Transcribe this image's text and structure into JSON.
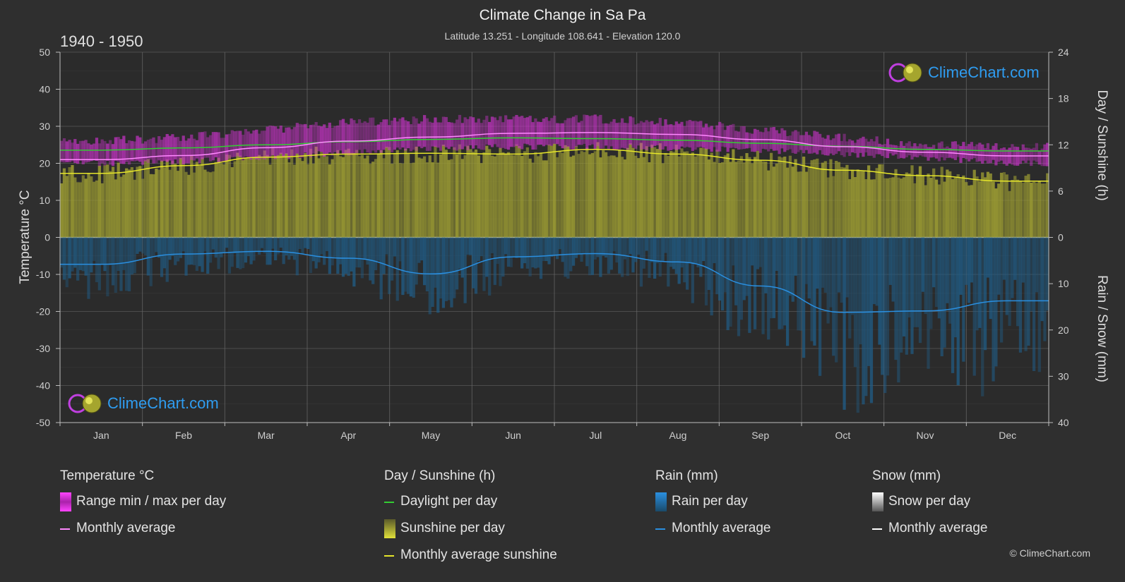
{
  "header": {
    "title": "Climate Change in Sa Pa",
    "subtitle": "Latitude 13.251 - Longitude 108.641 - Elevation 120.0",
    "period": "1940 - 1950"
  },
  "watermark": {
    "text": "ClimeChart.com",
    "copyright": "© ClimeChart.com"
  },
  "colors": {
    "background": "#2f2f2f",
    "temp_range": "#cc33cc",
    "temp_avg": "#ff88ff",
    "daylight": "#33cc33",
    "sunshine_fill": "#a8a838",
    "sunshine_avg": "#e6e62a",
    "rain_fill": "#1f5f8b",
    "rain_avg": "#2a8fe0",
    "snow_avg": "#ffffff"
  },
  "chart_data": {
    "type": "area",
    "title": "Climate Change in Sa Pa",
    "x": [
      "Jan",
      "Feb",
      "Mar",
      "Apr",
      "May",
      "Jun",
      "Jul",
      "Aug",
      "Sep",
      "Oct",
      "Nov",
      "Dec"
    ],
    "axes": {
      "left": {
        "label": "Temperature °C",
        "range": [
          -50,
          50
        ],
        "ticks": [
          50,
          40,
          30,
          20,
          10,
          0,
          -10,
          -20,
          -30,
          -40,
          -50
        ]
      },
      "right_top": {
        "label": "Day / Sunshine (h)",
        "range": [
          0,
          24
        ],
        "ticks": [
          24,
          18,
          12,
          6,
          0
        ]
      },
      "right_bottom": {
        "label": "Rain / Snow (mm)",
        "range": [
          0,
          40
        ],
        "ticks": [
          0,
          10,
          20,
          30,
          40
        ]
      }
    },
    "grid": true,
    "series": [
      {
        "name": "Range min / max per day",
        "axis": "temperature",
        "min": [
          20,
          20.5,
          21.5,
          23,
          24,
          24.5,
          24.5,
          24,
          23.5,
          22.5,
          21.5,
          20
        ],
        "max": [
          26,
          27,
          29,
          31,
          32,
          32,
          32,
          31,
          29,
          27,
          25,
          24.5
        ]
      },
      {
        "name": "Monthly average",
        "group": "Temperature °C",
        "axis": "temperature",
        "values": [
          21.0,
          22.1,
          24.2,
          26.0,
          27.1,
          28.1,
          28.3,
          27.8,
          26.4,
          24.5,
          23.0,
          22.0
        ]
      },
      {
        "name": "Daylight per day",
        "axis": "hours",
        "values": [
          11.3,
          11.6,
          12.0,
          12.4,
          12.7,
          12.9,
          12.8,
          12.6,
          12.2,
          11.8,
          11.4,
          11.2
        ]
      },
      {
        "name": "Sunshine per day",
        "axis": "hours",
        "values": [
          8.3,
          9.3,
          10.4,
          10.8,
          10.9,
          10.8,
          11.4,
          10.8,
          10.0,
          8.7,
          8.0,
          7.3
        ]
      },
      {
        "name": "Monthly average sunshine",
        "axis": "hours",
        "values": [
          8.3,
          9.3,
          10.4,
          10.8,
          10.9,
          10.8,
          11.4,
          10.8,
          10.0,
          8.7,
          8.0,
          7.3
        ]
      },
      {
        "name": "Rain per day",
        "axis": "rain",
        "values": [
          5.8,
          3.6,
          3.0,
          4.5,
          7.9,
          4.2,
          3.5,
          5.3,
          10.5,
          16.2,
          15.9,
          13.7
        ]
      },
      {
        "name": "Monthly average",
        "group": "Rain (mm)",
        "axis": "rain",
        "values": [
          5.8,
          3.6,
          3.0,
          4.5,
          7.9,
          4.2,
          3.5,
          5.3,
          10.5,
          16.2,
          15.9,
          13.7
        ]
      },
      {
        "name": "Snow per day",
        "axis": "snow",
        "values": [
          0,
          0,
          0,
          0,
          0,
          0,
          0,
          0,
          0,
          0,
          0,
          0
        ]
      }
    ]
  },
  "legend": {
    "temperature": {
      "title": "Temperature °C",
      "items": [
        "Range min / max per day",
        "Monthly average"
      ]
    },
    "sunshine": {
      "title": "Day / Sunshine (h)",
      "items": [
        "Daylight per day",
        "Sunshine per day",
        "Monthly average sunshine"
      ]
    },
    "rain": {
      "title": "Rain (mm)",
      "items": [
        "Rain per day",
        "Monthly average"
      ]
    },
    "snow": {
      "title": "Snow (mm)",
      "items": [
        "Snow per day",
        "Monthly average"
      ]
    }
  }
}
